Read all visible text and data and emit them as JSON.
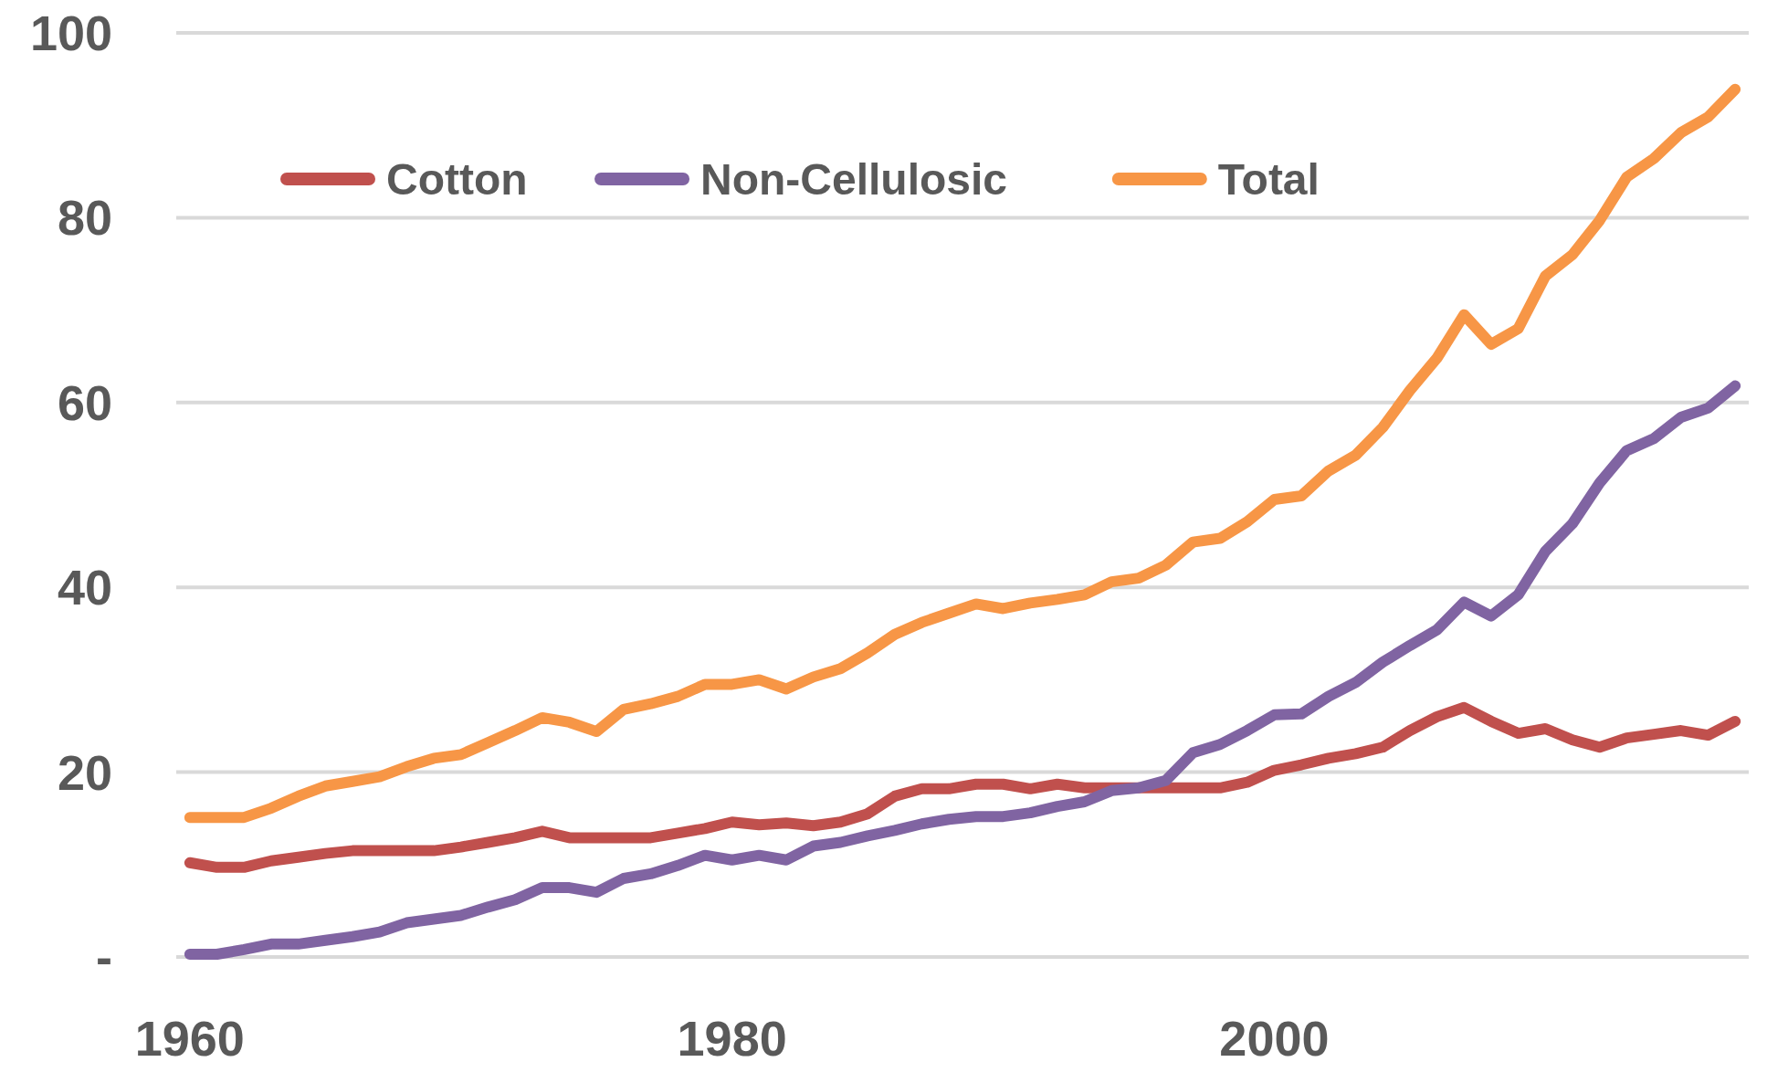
{
  "chart_data": {
    "type": "line",
    "x": [
      1960,
      1961,
      1962,
      1963,
      1964,
      1965,
      1966,
      1967,
      1968,
      1969,
      1970,
      1971,
      1972,
      1973,
      1974,
      1975,
      1976,
      1977,
      1978,
      1979,
      1980,
      1981,
      1982,
      1983,
      1984,
      1985,
      1986,
      1987,
      1988,
      1989,
      1990,
      1991,
      1992,
      1993,
      1994,
      1995,
      1996,
      1997,
      1998,
      1999,
      2000,
      2001,
      2002,
      2003,
      2004,
      2005,
      2006,
      2007,
      2008,
      2009,
      2010,
      2011,
      2012,
      2013,
      2014,
      2015,
      2016,
      2017
    ],
    "series": [
      {
        "name": "Cotton",
        "color": "#c0504d",
        "values": [
          10.2,
          9.7,
          9.7,
          10.4,
          10.8,
          11.2,
          11.5,
          11.5,
          11.5,
          11.5,
          11.9,
          12.4,
          12.9,
          13.6,
          12.9,
          12.9,
          12.9,
          12.9,
          13.4,
          13.9,
          14.6,
          14.3,
          14.5,
          14.2,
          14.6,
          15.5,
          17.4,
          18.2,
          18.2,
          18.7,
          18.7,
          18.2,
          18.7,
          18.3,
          18.3,
          18.3,
          18.3,
          18.3,
          18.3,
          18.9,
          20.2,
          20.8,
          21.5,
          22.0,
          22.7,
          24.5,
          26.0,
          27.0,
          25.5,
          24.2,
          24.7,
          23.5,
          22.7,
          23.7,
          24.1,
          24.5,
          24.0,
          25.5
        ]
      },
      {
        "name": "Non-Cellulosic",
        "color": "#8064a2",
        "values": [
          0.3,
          0.3,
          0.8,
          1.4,
          1.4,
          1.8,
          2.2,
          2.7,
          3.7,
          4.1,
          4.5,
          5.4,
          6.2,
          7.5,
          7.5,
          7.0,
          8.5,
          9.0,
          9.9,
          11.0,
          10.5,
          11.0,
          10.5,
          12.0,
          12.4,
          13.1,
          13.7,
          14.4,
          14.9,
          15.2,
          15.2,
          15.6,
          16.3,
          16.8,
          18.0,
          18.3,
          19.1,
          22.1,
          23.0,
          24.5,
          26.2,
          26.3,
          28.2,
          29.7,
          31.9,
          33.7,
          35.4,
          38.4,
          36.9,
          39.2,
          43.9,
          46.9,
          51.3,
          54.8,
          56.1,
          58.4,
          59.4,
          61.8
        ]
      },
      {
        "name": "Total",
        "color": "#f79646",
        "values": [
          15.1,
          15.1,
          15.1,
          16.1,
          17.4,
          18.5,
          19.0,
          19.5,
          20.6,
          21.5,
          21.9,
          23.2,
          24.5,
          25.9,
          25.4,
          24.4,
          26.8,
          27.4,
          28.2,
          29.5,
          29.5,
          30.0,
          29.0,
          30.3,
          31.2,
          32.9,
          34.9,
          36.2,
          37.2,
          38.2,
          37.7,
          38.3,
          38.7,
          39.2,
          40.6,
          41.0,
          42.4,
          44.9,
          45.3,
          47.1,
          49.5,
          49.9,
          52.6,
          54.3,
          57.3,
          61.3,
          64.8,
          69.5,
          66.3,
          68.0,
          73.7,
          76.0,
          79.7,
          84.4,
          86.4,
          89.2,
          90.9,
          93.9
        ]
      }
    ],
    "xlim": [
      1959.5,
      2017.5
    ],
    "xticks": [
      1960,
      1980,
      2000
    ],
    "ylim": [
      0,
      100
    ],
    "yticks": [
      {
        "value": 0,
        "label": "-"
      },
      20,
      40,
      60,
      80,
      100
    ],
    "grid": "y",
    "legend": "top",
    "marker": "none",
    "line_style": "solid"
  }
}
